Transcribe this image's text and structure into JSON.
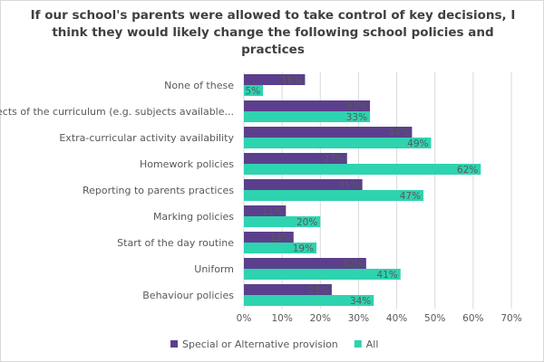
{
  "chart_data": {
    "type": "bar",
    "orientation": "horizontal",
    "title": "If our school's parents were allowed to take control of key decisions, I think they would likely change the following school policies and practices",
    "categories": [
      "None of these",
      "Aspects of the curriculum (e.g. subjects available...",
      "Extra-curricular activity availability",
      "Homework policies",
      "Reporting to parents practices",
      "Marking policies",
      "Start of the day routine",
      "Uniform",
      "Behaviour policies"
    ],
    "series": [
      {
        "name": "Special or Alternative provision",
        "color": "#5b3f8c",
        "values": [
          16,
          33,
          44,
          27,
          31,
          11,
          13,
          32,
          23
        ],
        "labels": [
          "16%",
          "33%",
          "44%",
          "27%",
          "31%",
          "11%",
          "13%",
          "32%",
          "23%"
        ]
      },
      {
        "name": "All",
        "color": "#2ed3b0",
        "values": [
          5,
          33,
          49,
          62,
          47,
          20,
          19,
          41,
          34
        ],
        "labels": [
          "5%",
          "33%",
          "49%",
          "62%",
          "47%",
          "20%",
          "19%",
          "41%",
          "34%"
        ]
      }
    ],
    "x_ticks": [
      "0%",
      "10%",
      "20%",
      "30%",
      "40%",
      "50%",
      "60%",
      "70%"
    ],
    "xlim": [
      0,
      70
    ],
    "grid": true,
    "legend_position": "bottom-left"
  }
}
